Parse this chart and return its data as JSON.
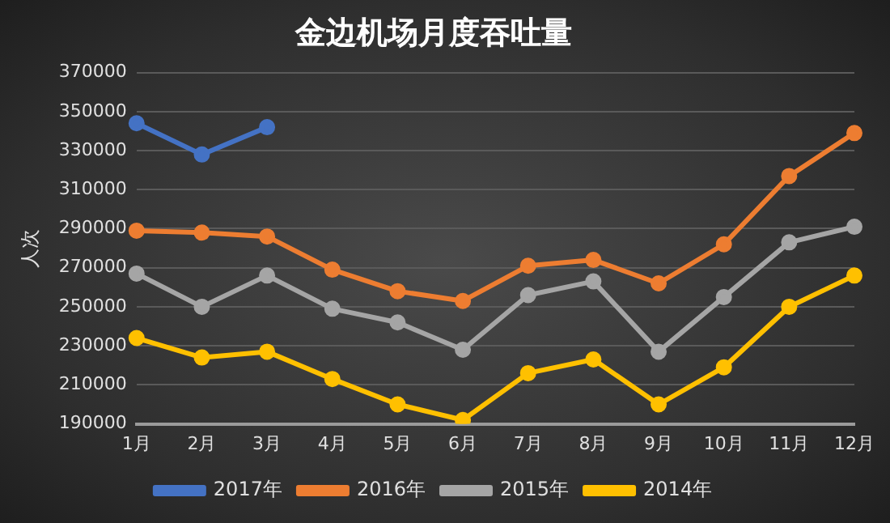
{
  "chart_data": {
    "type": "line",
    "title": "金边机场月度吞吐量",
    "ylabel": "人次",
    "categories": [
      "1月",
      "2月",
      "3月",
      "4月",
      "5月",
      "6月",
      "7月",
      "8月",
      "9月",
      "10月",
      "11月",
      "12月"
    ],
    "series": [
      {
        "name": "2017年",
        "color": "#4472c4",
        "values": [
          344000,
          328000,
          342000,
          null,
          null,
          null,
          null,
          null,
          null,
          null,
          null,
          null
        ]
      },
      {
        "name": "2016年",
        "color": "#ed7d31",
        "values": [
          289000,
          288000,
          286000,
          269000,
          258000,
          253000,
          271000,
          274000,
          262000,
          282000,
          317000,
          339000
        ]
      },
      {
        "name": "2015年",
        "color": "#a5a5a5",
        "values": [
          267000,
          250000,
          266000,
          249000,
          242000,
          228000,
          256000,
          263000,
          227000,
          255000,
          283000,
          291000
        ]
      },
      {
        "name": "2014年",
        "color": "#ffc000",
        "values": [
          234000,
          224000,
          227000,
          213000,
          200000,
          192000,
          216000,
          223000,
          200000,
          219000,
          250000,
          266000
        ]
      }
    ],
    "ylim": [
      190000,
      370000
    ],
    "yticks": [
      190000,
      210000,
      230000,
      250000,
      270000,
      290000,
      310000,
      330000,
      350000,
      370000
    ],
    "grid": "y",
    "legend": "bottom",
    "marker": "circle",
    "line_style": "solid"
  }
}
